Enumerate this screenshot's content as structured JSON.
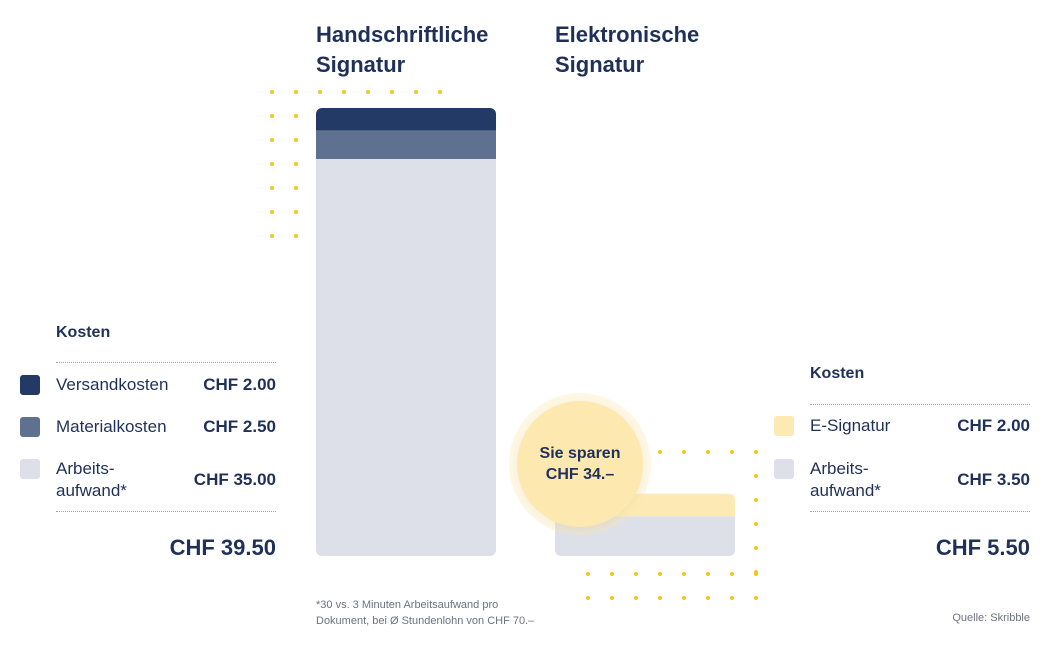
{
  "chart_data": {
    "type": "bar",
    "stacked": true,
    "categories": [
      "Handschriftliche\nSignatur",
      "Elektronische\nSignatur"
    ],
    "series": [
      {
        "name": "Versandkosten",
        "values": [
          2.0,
          0
        ],
        "color": "#243a66"
      },
      {
        "name": "Materialkosten",
        "values": [
          2.5,
          0
        ],
        "color": "#5f7190"
      },
      {
        "name": "E-Signatur",
        "values": [
          0,
          2.0
        ],
        "color": "#fde9b3"
      },
      {
        "name": "Arbeits-\naufwand*",
        "values": [
          35.0,
          3.5
        ],
        "color": "#dde0e8"
      }
    ],
    "ylim": [
      0,
      39.5
    ]
  },
  "left_legend": {
    "heading": "Kosten",
    "items": [
      {
        "label": "Versandkosten",
        "value": "CHF 2.00",
        "color": "#243a66"
      },
      {
        "label": "Materialkosten",
        "value": "CHF 2.50",
        "color": "#5f7190"
      },
      {
        "label": "Arbeits-\naufwand*",
        "value": "CHF 35.00",
        "color": "#dde0e8"
      }
    ],
    "total": "CHF 39.50"
  },
  "right_legend": {
    "heading": "Kosten",
    "items": [
      {
        "label": "E-Signatur",
        "value": "CHF 2.00",
        "color": "#fde9b3"
      },
      {
        "label": "Arbeits-\naufwand*",
        "value": "CHF 3.50",
        "color": "#dde0e8"
      }
    ],
    "total": "CHF 5.50"
  },
  "savings_badge": "Sie sparen\nCHF 34.–",
  "footnote": "*30 vs. 3 Minuten Arbeitsaufwand pro\nDokument, bei Ø Stundenlohn von CHF 70.–",
  "source": "Quelle: Skribble",
  "colors": {
    "dots": "#f5c518",
    "text": "#1f3158"
  }
}
